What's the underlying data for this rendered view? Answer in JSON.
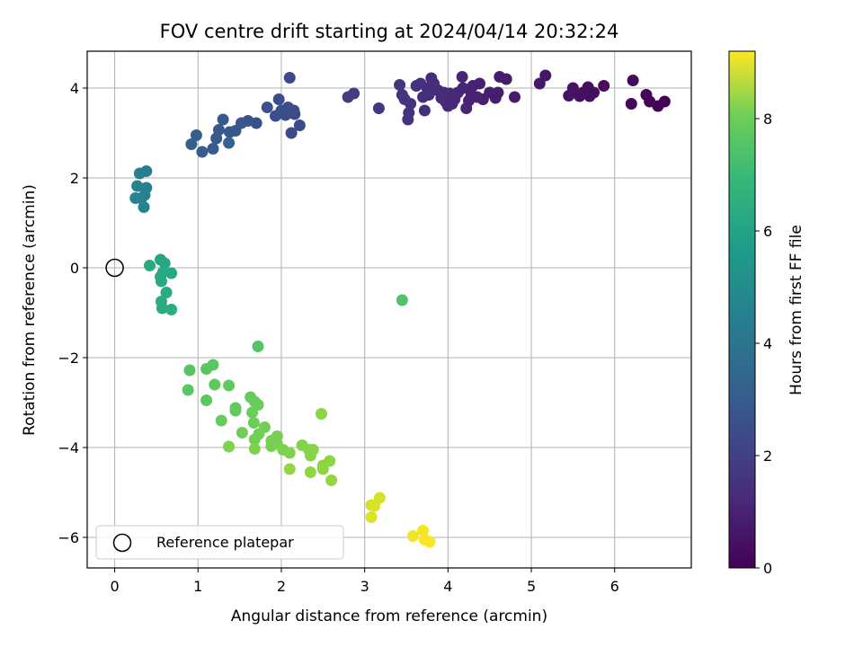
{
  "chart_data": {
    "type": "scatter",
    "title": "FOV centre drift starting at 2024/04/14 20:32:24",
    "xlabel": "Angular distance from reference (arcmin)",
    "ylabel": "Rotation from reference (arcmin)",
    "xlim": [
      -0.33,
      6.92
    ],
    "ylim": [
      -6.68,
      4.82
    ],
    "xticks": [
      0,
      1,
      2,
      3,
      4,
      5,
      6
    ],
    "yticks": [
      -6,
      -4,
      -2,
      0,
      2,
      4
    ],
    "grid": true,
    "colormap": "viridis",
    "colorbar": {
      "label": "Hours from first FF file",
      "range": [
        0,
        9.2
      ],
      "ticks": [
        0,
        2,
        4,
        6,
        8
      ]
    },
    "legend": {
      "placement": "lower-left",
      "entries": [
        "Reference platepar"
      ]
    },
    "reference_point": {
      "x": 0,
      "y": 0
    },
    "points": [
      {
        "x": 6.6,
        "y": 3.7,
        "h": 0.0
      },
      {
        "x": 6.52,
        "y": 3.6,
        "h": 0.05
      },
      {
        "x": 6.42,
        "y": 3.7,
        "h": 0.1
      },
      {
        "x": 6.38,
        "y": 3.85,
        "h": 0.12
      },
      {
        "x": 6.22,
        "y": 4.17,
        "h": 0.18
      },
      {
        "x": 6.2,
        "y": 3.65,
        "h": 0.2
      },
      {
        "x": 5.87,
        "y": 4.05,
        "h": 0.3
      },
      {
        "x": 5.75,
        "y": 3.9,
        "h": 0.33
      },
      {
        "x": 5.7,
        "y": 3.82,
        "h": 0.36
      },
      {
        "x": 5.68,
        "y": 4.02,
        "h": 0.38
      },
      {
        "x": 5.62,
        "y": 3.9,
        "h": 0.4
      },
      {
        "x": 5.58,
        "y": 3.82,
        "h": 0.42
      },
      {
        "x": 5.5,
        "y": 4.0,
        "h": 0.45
      },
      {
        "x": 5.45,
        "y": 3.83,
        "h": 0.48
      },
      {
        "x": 5.17,
        "y": 4.28,
        "h": 0.55
      },
      {
        "x": 5.1,
        "y": 4.1,
        "h": 0.58
      },
      {
        "x": 4.8,
        "y": 3.8,
        "h": 0.68
      },
      {
        "x": 4.7,
        "y": 4.2,
        "h": 0.7
      },
      {
        "x": 4.62,
        "y": 4.25,
        "h": 0.72
      },
      {
        "x": 4.6,
        "y": 3.9,
        "h": 0.74
      },
      {
        "x": 4.57,
        "y": 3.78,
        "h": 0.76
      },
      {
        "x": 4.5,
        "y": 3.9,
        "h": 0.78
      },
      {
        "x": 4.42,
        "y": 3.75,
        "h": 0.8
      },
      {
        "x": 4.38,
        "y": 4.1,
        "h": 0.82
      },
      {
        "x": 4.35,
        "y": 3.8,
        "h": 0.84
      },
      {
        "x": 4.3,
        "y": 4.05,
        "h": 0.86
      },
      {
        "x": 4.28,
        "y": 3.85,
        "h": 0.88
      },
      {
        "x": 4.25,
        "y": 3.72,
        "h": 0.9
      },
      {
        "x": 4.22,
        "y": 3.55,
        "h": 0.92
      },
      {
        "x": 4.18,
        "y": 4.0,
        "h": 0.94
      },
      {
        "x": 4.17,
        "y": 4.25,
        "h": 0.96
      },
      {
        "x": 4.12,
        "y": 3.9,
        "h": 0.98
      },
      {
        "x": 4.08,
        "y": 3.75,
        "h": 1.0
      },
      {
        "x": 4.05,
        "y": 3.65,
        "h": 1.02
      },
      {
        "x": 4.02,
        "y": 3.88,
        "h": 1.04
      },
      {
        "x": 4.0,
        "y": 3.6,
        "h": 1.06
      },
      {
        "x": 3.97,
        "y": 3.7,
        "h": 1.08
      },
      {
        "x": 3.95,
        "y": 3.9,
        "h": 1.1
      },
      {
        "x": 3.92,
        "y": 3.78,
        "h": 1.12
      },
      {
        "x": 3.88,
        "y": 3.95,
        "h": 1.14
      },
      {
        "x": 3.83,
        "y": 4.1,
        "h": 1.16
      },
      {
        "x": 3.8,
        "y": 4.22,
        "h": 1.18
      },
      {
        "x": 3.77,
        "y": 3.85,
        "h": 1.2
      },
      {
        "x": 3.75,
        "y": 4.0,
        "h": 1.22
      },
      {
        "x": 3.72,
        "y": 3.5,
        "h": 1.24
      },
      {
        "x": 3.7,
        "y": 3.8,
        "h": 1.26
      },
      {
        "x": 3.67,
        "y": 4.1,
        "h": 1.28
      },
      {
        "x": 3.62,
        "y": 4.05,
        "h": 1.3
      },
      {
        "x": 3.55,
        "y": 3.65,
        "h": 1.32
      },
      {
        "x": 3.53,
        "y": 3.45,
        "h": 1.34
      },
      {
        "x": 3.52,
        "y": 3.3,
        "h": 1.36
      },
      {
        "x": 3.48,
        "y": 3.75,
        "h": 1.38
      },
      {
        "x": 3.45,
        "y": 3.85,
        "h": 1.4
      },
      {
        "x": 3.42,
        "y": 4.07,
        "h": 1.42
      },
      {
        "x": 3.17,
        "y": 3.55,
        "h": 1.5
      },
      {
        "x": 2.87,
        "y": 3.88,
        "h": 1.6
      },
      {
        "x": 2.8,
        "y": 3.8,
        "h": 1.65
      },
      {
        "x": 2.1,
        "y": 4.23,
        "h": 2.0
      },
      {
        "x": 2.22,
        "y": 3.17,
        "h": 2.05
      },
      {
        "x": 2.16,
        "y": 3.42,
        "h": 2.1
      },
      {
        "x": 2.15,
        "y": 3.5,
        "h": 2.12
      },
      {
        "x": 2.12,
        "y": 3.0,
        "h": 2.14
      },
      {
        "x": 2.08,
        "y": 3.57,
        "h": 2.16
      },
      {
        "x": 2.05,
        "y": 3.4,
        "h": 2.18
      },
      {
        "x": 2.0,
        "y": 3.5,
        "h": 2.2
      },
      {
        "x": 1.97,
        "y": 3.75,
        "h": 2.22
      },
      {
        "x": 1.93,
        "y": 3.38,
        "h": 2.24
      },
      {
        "x": 1.83,
        "y": 3.57,
        "h": 2.3
      },
      {
        "x": 1.7,
        "y": 3.22,
        "h": 2.35
      },
      {
        "x": 1.6,
        "y": 3.27,
        "h": 2.4
      },
      {
        "x": 1.52,
        "y": 3.22,
        "h": 2.45
      },
      {
        "x": 1.45,
        "y": 3.05,
        "h": 2.5
      },
      {
        "x": 1.38,
        "y": 3.02,
        "h": 2.55
      },
      {
        "x": 1.3,
        "y": 3.3,
        "h": 2.58
      },
      {
        "x": 1.25,
        "y": 3.07,
        "h": 2.6
      },
      {
        "x": 1.22,
        "y": 2.88,
        "h": 2.62
      },
      {
        "x": 1.18,
        "y": 2.65,
        "h": 2.65
      },
      {
        "x": 1.05,
        "y": 2.58,
        "h": 2.7
      },
      {
        "x": 0.98,
        "y": 2.95,
        "h": 2.75
      },
      {
        "x": 0.92,
        "y": 2.75,
        "h": 2.8
      },
      {
        "x": 1.37,
        "y": 2.78,
        "h": 2.85
      },
      {
        "x": 0.38,
        "y": 2.15,
        "h": 3.9
      },
      {
        "x": 0.3,
        "y": 2.1,
        "h": 3.95
      },
      {
        "x": 0.38,
        "y": 1.78,
        "h": 4.0
      },
      {
        "x": 0.36,
        "y": 1.62,
        "h": 4.05
      },
      {
        "x": 0.32,
        "y": 1.55,
        "h": 4.1
      },
      {
        "x": 0.27,
        "y": 1.82,
        "h": 4.12
      },
      {
        "x": 0.25,
        "y": 1.55,
        "h": 4.15
      },
      {
        "x": 0.35,
        "y": 1.35,
        "h": 4.2
      },
      {
        "x": 0.55,
        "y": 0.18,
        "h": 5.4
      },
      {
        "x": 0.6,
        "y": 0.1,
        "h": 5.45
      },
      {
        "x": 0.68,
        "y": -0.12,
        "h": 5.5
      },
      {
        "x": 0.58,
        "y": -0.1,
        "h": 5.55
      },
      {
        "x": 0.55,
        "y": -0.2,
        "h": 5.58
      },
      {
        "x": 0.42,
        "y": 0.05,
        "h": 5.6
      },
      {
        "x": 0.56,
        "y": -0.3,
        "h": 5.62
      },
      {
        "x": 0.62,
        "y": -0.55,
        "h": 5.65
      },
      {
        "x": 0.56,
        "y": -0.75,
        "h": 5.68
      },
      {
        "x": 0.57,
        "y": -0.9,
        "h": 5.7
      },
      {
        "x": 0.68,
        "y": -0.93,
        "h": 5.72
      },
      {
        "x": 3.45,
        "y": -0.72,
        "h": 6.6
      },
      {
        "x": 1.72,
        "y": -1.75,
        "h": 6.7
      },
      {
        "x": 0.9,
        "y": -2.28,
        "h": 6.75
      },
      {
        "x": 0.88,
        "y": -2.72,
        "h": 6.78
      },
      {
        "x": 1.1,
        "y": -2.25,
        "h": 6.8
      },
      {
        "x": 1.18,
        "y": -2.16,
        "h": 6.82
      },
      {
        "x": 1.1,
        "y": -2.95,
        "h": 6.85
      },
      {
        "x": 1.2,
        "y": -2.6,
        "h": 6.88
      },
      {
        "x": 1.37,
        "y": -2.62,
        "h": 6.92
      },
      {
        "x": 1.45,
        "y": -3.12,
        "h": 6.95
      },
      {
        "x": 1.45,
        "y": -3.18,
        "h": 6.98
      },
      {
        "x": 1.28,
        "y": -3.4,
        "h": 7.0
      },
      {
        "x": 1.63,
        "y": -2.88,
        "h": 7.02
      },
      {
        "x": 1.68,
        "y": -2.98,
        "h": 7.05
      },
      {
        "x": 1.72,
        "y": -3.05,
        "h": 7.08
      },
      {
        "x": 1.65,
        "y": -3.22,
        "h": 7.1
      },
      {
        "x": 1.67,
        "y": -3.45,
        "h": 7.12
      },
      {
        "x": 1.8,
        "y": -3.55,
        "h": 7.15
      },
      {
        "x": 1.53,
        "y": -3.67,
        "h": 7.18
      },
      {
        "x": 1.73,
        "y": -3.7,
        "h": 7.2
      },
      {
        "x": 1.68,
        "y": -3.82,
        "h": 7.22
      },
      {
        "x": 1.88,
        "y": -3.85,
        "h": 7.25
      },
      {
        "x": 1.95,
        "y": -3.75,
        "h": 7.28
      },
      {
        "x": 1.88,
        "y": -3.97,
        "h": 7.3
      },
      {
        "x": 1.95,
        "y": -3.92,
        "h": 7.32
      },
      {
        "x": 2.02,
        "y": -4.05,
        "h": 7.35
      },
      {
        "x": 1.68,
        "y": -4.03,
        "h": 7.38
      },
      {
        "x": 1.37,
        "y": -3.98,
        "h": 7.4
      },
      {
        "x": 2.1,
        "y": -4.12,
        "h": 7.42
      },
      {
        "x": 2.25,
        "y": -3.95,
        "h": 7.45
      },
      {
        "x": 2.33,
        "y": -4.05,
        "h": 7.48
      },
      {
        "x": 2.38,
        "y": -4.05,
        "h": 7.5
      },
      {
        "x": 2.35,
        "y": -4.18,
        "h": 7.52
      },
      {
        "x": 2.48,
        "y": -3.25,
        "h": 7.55
      },
      {
        "x": 2.5,
        "y": -4.4,
        "h": 7.58
      },
      {
        "x": 2.58,
        "y": -4.3,
        "h": 7.6
      },
      {
        "x": 2.5,
        "y": -4.48,
        "h": 7.62
      },
      {
        "x": 2.35,
        "y": -4.55,
        "h": 7.65
      },
      {
        "x": 2.1,
        "y": -4.48,
        "h": 7.68
      },
      {
        "x": 2.6,
        "y": -4.73,
        "h": 7.7
      },
      {
        "x": 3.08,
        "y": -5.28,
        "h": 8.6
      },
      {
        "x": 3.18,
        "y": -5.12,
        "h": 8.65
      },
      {
        "x": 3.12,
        "y": -5.3,
        "h": 8.7
      },
      {
        "x": 3.08,
        "y": -5.55,
        "h": 8.72
      },
      {
        "x": 3.58,
        "y": -5.97,
        "h": 9.0
      },
      {
        "x": 3.7,
        "y": -5.85,
        "h": 9.05
      },
      {
        "x": 3.72,
        "y": -6.05,
        "h": 9.1
      },
      {
        "x": 3.78,
        "y": -6.1,
        "h": 9.15
      }
    ]
  }
}
